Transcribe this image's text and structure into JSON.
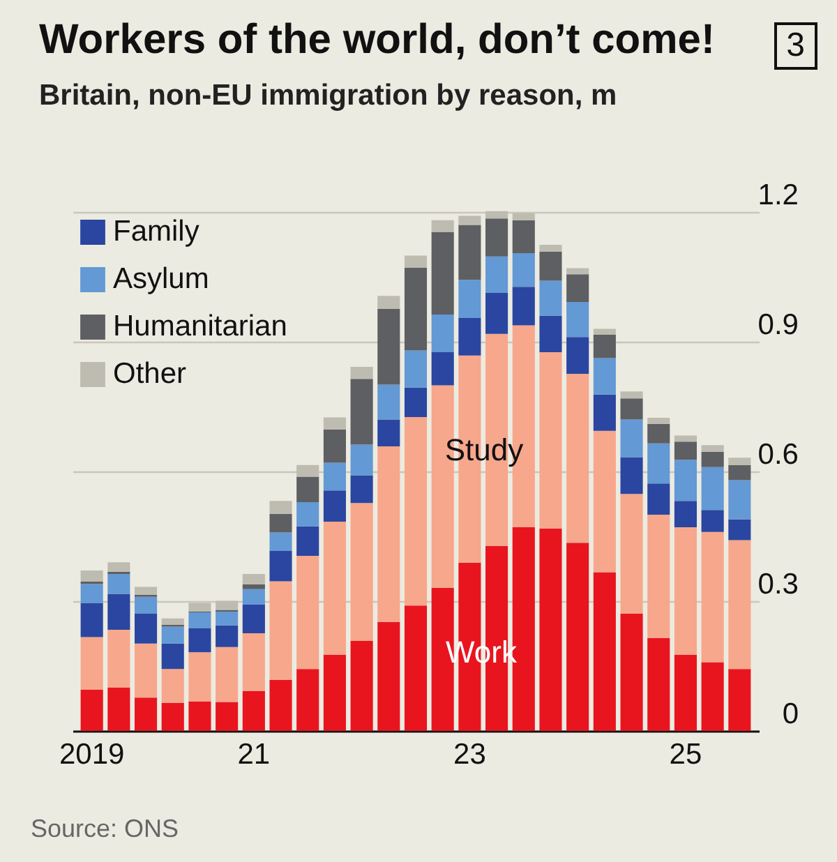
{
  "chart_data": {
    "type": "bar",
    "stacked": true,
    "title": "Workers of the world, don’t come!",
    "subtitle": "Britain, non-EU immigration by reason, m",
    "categories": [
      "2019",
      null,
      null,
      null,
      null,
      null,
      "21",
      null,
      null,
      null,
      null,
      null,
      null,
      null,
      "23",
      null,
      null,
      null,
      null,
      null,
      null,
      null,
      "25",
      null,
      null
    ],
    "series": [
      {
        "color": "#e8151f",
        "values": [
          0.095,
          0.1,
          0.077,
          0.065,
          0.068,
          0.067,
          0.092,
          0.118,
          0.143,
          0.176,
          0.208,
          0.252,
          0.29,
          0.331,
          0.389,
          0.428,
          0.471,
          0.468,
          0.435,
          0.367,
          0.271,
          0.215,
          0.176,
          0.159,
          0.143
        ]
      },
      {
        "color": "#f7a78c",
        "values": [
          0.122,
          0.134,
          0.125,
          0.078,
          0.114,
          0.127,
          0.134,
          0.228,
          0.262,
          0.308,
          0.319,
          0.406,
          0.436,
          0.468,
          0.479,
          0.49,
          0.467,
          0.408,
          0.391,
          0.327,
          0.277,
          0.285,
          0.295,
          0.301,
          0.298
        ]
      },
      {
        "name": "Family",
        "color": "#2a46a0",
        "values": [
          0.079,
          0.083,
          0.069,
          0.059,
          0.055,
          0.05,
          0.066,
          0.07,
          0.068,
          0.072,
          0.064,
          0.062,
          0.068,
          0.077,
          0.087,
          0.095,
          0.089,
          0.084,
          0.085,
          0.084,
          0.085,
          0.072,
          0.061,
          0.051,
          0.048
        ]
      },
      {
        "name": "Asylum",
        "color": "#6399d4",
        "values": [
          0.044,
          0.046,
          0.039,
          0.039,
          0.037,
          0.032,
          0.036,
          0.043,
          0.056,
          0.064,
          0.071,
          0.081,
          0.086,
          0.087,
          0.088,
          0.084,
          0.078,
          0.081,
          0.081,
          0.084,
          0.087,
          0.093,
          0.095,
          0.099,
          0.091
        ]
      },
      {
        "name": "Humanitarian",
        "color": "#5d5f62",
        "values": [
          0.005,
          0.005,
          0.005,
          0.004,
          0.002,
          0.004,
          0.011,
          0.043,
          0.059,
          0.077,
          0.152,
          0.175,
          0.191,
          0.191,
          0.127,
          0.088,
          0.076,
          0.067,
          0.064,
          0.054,
          0.049,
          0.045,
          0.042,
          0.035,
          0.035
        ]
      },
      {
        "name": "Other",
        "color": "#bebcb1",
        "values": [
          0.026,
          0.022,
          0.018,
          0.015,
          0.02,
          0.021,
          0.024,
          0.03,
          0.027,
          0.028,
          0.028,
          0.03,
          0.028,
          0.027,
          0.021,
          0.017,
          0.016,
          0.016,
          0.014,
          0.014,
          0.016,
          0.014,
          0.014,
          0.016,
          0.017
        ]
      }
    ],
    "ylim": [
      0,
      1.2
    ],
    "yticks": [
      0,
      0.3,
      0.6,
      0.9,
      1.2
    ],
    "grid": "y",
    "legend": "top left",
    "annotations": [
      "3",
      "Study",
      "Work",
      "Source: ONS"
    ]
  }
}
